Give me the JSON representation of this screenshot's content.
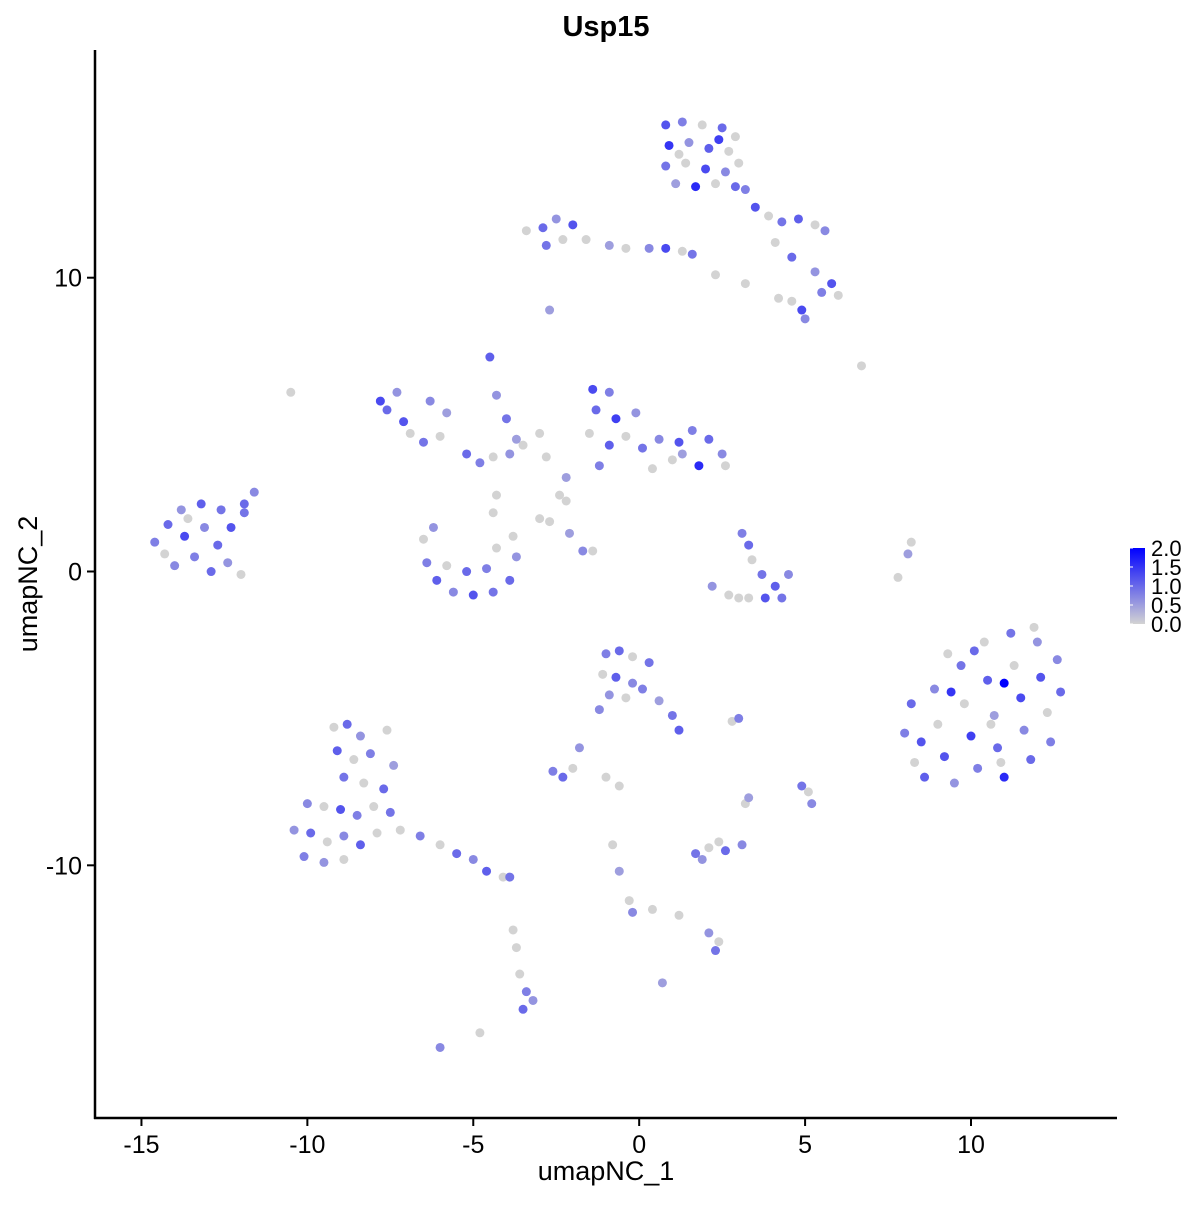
{
  "chart_data": {
    "type": "scatter",
    "title": "Usp15",
    "xlabel": "umapNC_1",
    "ylabel": "umapNC_2",
    "xlim": [
      -16.4,
      14.4
    ],
    "ylim": [
      -18.6,
      17.75
    ],
    "xticks": [
      -15,
      -10,
      -5,
      0,
      5,
      10
    ],
    "xtick_labels": [
      "-15",
      "-10",
      "-5",
      "0",
      "5",
      "10"
    ],
    "yticks": [
      -10,
      0,
      10
    ],
    "ytick_labels": [
      "-10",
      "0",
      "10"
    ],
    "grid": false,
    "legend": {
      "placement": "right",
      "type": "colorbar",
      "range": [
        0,
        2.0
      ],
      "ticks": [
        0.0,
        0.5,
        1.0,
        1.5,
        2.0
      ],
      "tick_labels": [
        "0.0",
        "0.5",
        "1.0",
        "1.5",
        "2.0"
      ],
      "low_color": "#D3D3D3",
      "high_color": "#0000FF"
    },
    "point_fields": [
      "umapNC_1",
      "umapNC_2",
      "expression"
    ],
    "points": [
      [
        0.8,
        15.2,
        1.2
      ],
      [
        1.3,
        15.3,
        0.8
      ],
      [
        1.9,
        15.2,
        0
      ],
      [
        2.5,
        15.1,
        1.0
      ],
      [
        2.9,
        14.8,
        0
      ],
      [
        0.9,
        14.5,
        1.5
      ],
      [
        1.5,
        14.6,
        0.6
      ],
      [
        2.1,
        14.4,
        1.1
      ],
      [
        2.7,
        14.3,
        0
      ],
      [
        0.8,
        13.8,
        0.9
      ],
      [
        1.4,
        13.9,
        0
      ],
      [
        2.0,
        13.7,
        1.3
      ],
      [
        2.6,
        13.6,
        0.7
      ],
      [
        3.0,
        13.9,
        0
      ],
      [
        1.1,
        13.2,
        0.5
      ],
      [
        1.7,
        13.1,
        1.6
      ],
      [
        2.3,
        13.2,
        0
      ],
      [
        2.9,
        13.1,
        1.0
      ],
      [
        1.2,
        14.2,
        0
      ],
      [
        2.4,
        14.7,
        1.4
      ],
      [
        3.2,
        13.0,
        0.8
      ],
      [
        3.5,
        12.4,
        1.2
      ],
      [
        3.9,
        12.1,
        0
      ],
      [
        4.3,
        11.9,
        0.9
      ],
      [
        4.8,
        12.0,
        1.1
      ],
      [
        5.3,
        11.8,
        0
      ],
      [
        5.6,
        11.6,
        0.7
      ],
      [
        4.1,
        11.2,
        0
      ],
      [
        4.6,
        10.7,
        1.0
      ],
      [
        5.3,
        10.2,
        0.6
      ],
      [
        5.8,
        9.8,
        1.2
      ],
      [
        6.0,
        9.4,
        0
      ],
      [
        5.5,
        9.5,
        0.8
      ],
      [
        4.6,
        9.2,
        0
      ],
      [
        4.9,
        8.9,
        1.3
      ],
      [
        5.0,
        8.6,
        0.7
      ],
      [
        4.2,
        9.3,
        0
      ],
      [
        -3.4,
        11.6,
        0
      ],
      [
        -2.9,
        11.7,
        1.0
      ],
      [
        -2.5,
        12.0,
        0.6
      ],
      [
        -2.0,
        11.8,
        1.2
      ],
      [
        -1.6,
        11.3,
        0
      ],
      [
        -2.8,
        11.1,
        0.9
      ],
      [
        -2.3,
        11.3,
        0
      ],
      [
        -0.9,
        11.1,
        0.5
      ],
      [
        -0.4,
        11.0,
        0
      ],
      [
        0.3,
        11.0,
        0.7
      ],
      [
        0.8,
        11.0,
        1.3
      ],
      [
        1.3,
        10.9,
        0
      ],
      [
        1.6,
        10.8,
        0.9
      ],
      [
        2.3,
        10.1,
        0
      ],
      [
        3.2,
        9.8,
        0
      ],
      [
        -2.7,
        8.9,
        0.5
      ],
      [
        6.7,
        7.0,
        0
      ],
      [
        -10.5,
        6.1,
        0
      ],
      [
        -14.6,
        1.0,
        0.8
      ],
      [
        -14.2,
        1.6,
        1.0
      ],
      [
        -13.8,
        2.1,
        0.6
      ],
      [
        -13.2,
        2.3,
        1.1
      ],
      [
        -12.6,
        2.1,
        0.9
      ],
      [
        -12.3,
        1.5,
        1.2
      ],
      [
        -14.3,
        0.6,
        0
      ],
      [
        -13.7,
        1.2,
        1.3
      ],
      [
        -13.1,
        1.5,
        0.7
      ],
      [
        -12.7,
        0.9,
        1.0
      ],
      [
        -13.4,
        0.5,
        0.8
      ],
      [
        -12.4,
        0.3,
        0.6
      ],
      [
        -12.0,
        -0.1,
        0
      ],
      [
        -12.9,
        0.0,
        1.0
      ],
      [
        -14.0,
        0.2,
        0.7
      ],
      [
        -11.9,
        2.0,
        0.9
      ],
      [
        -11.6,
        2.7,
        0.7
      ],
      [
        -11.9,
        2.3,
        1.0
      ],
      [
        -13.6,
        1.8,
        0
      ],
      [
        -7.6,
        5.5,
        1.0
      ],
      [
        -7.3,
        6.1,
        0.6
      ],
      [
        -7.1,
        5.1,
        1.2
      ],
      [
        -6.9,
        4.7,
        0
      ],
      [
        -6.5,
        4.4,
        0.9
      ],
      [
        -6.0,
        4.6,
        0
      ],
      [
        -5.8,
        5.4,
        0.5
      ],
      [
        -5.2,
        4.0,
        1.0
      ],
      [
        -4.8,
        3.7,
        0.8
      ],
      [
        -4.4,
        3.9,
        0
      ],
      [
        -3.9,
        4.0,
        0.6
      ],
      [
        -3.5,
        4.3,
        0
      ],
      [
        -7.8,
        5.8,
        1.3
      ],
      [
        -6.3,
        5.8,
        0.7
      ],
      [
        -4.5,
        7.3,
        1.1
      ],
      [
        -4.3,
        6.0,
        0.6
      ],
      [
        -4.0,
        5.2,
        0.9
      ],
      [
        -3.7,
        4.5,
        0.5
      ],
      [
        -3.0,
        4.7,
        0
      ],
      [
        -2.8,
        3.9,
        0
      ],
      [
        -6.5,
        1.1,
        0
      ],
      [
        -6.4,
        0.3,
        0.8
      ],
      [
        -6.1,
        -0.3,
        1.1
      ],
      [
        -5.6,
        -0.7,
        0.7
      ],
      [
        -5.0,
        -0.8,
        1.2
      ],
      [
        -4.4,
        -0.7,
        0.9
      ],
      [
        -3.9,
        -0.3,
        1.0
      ],
      [
        -3.7,
        0.5,
        0.6
      ],
      [
        -3.8,
        1.2,
        0
      ],
      [
        -5.8,
        0.2,
        0
      ],
      [
        -5.2,
        0.0,
        1.0
      ],
      [
        -4.6,
        0.1,
        0.8
      ],
      [
        -4.3,
        0.8,
        0
      ],
      [
        -6.2,
        1.5,
        0.6
      ],
      [
        -4.4,
        2.0,
        0
      ],
      [
        -4.3,
        2.6,
        0
      ],
      [
        -3.0,
        1.8,
        0
      ],
      [
        -2.7,
        1.7,
        0
      ],
      [
        -2.1,
        1.3,
        0.5
      ],
      [
        -1.7,
        0.7,
        0.7
      ],
      [
        -1.4,
        0.7,
        0
      ],
      [
        -2.2,
        2.4,
        0
      ],
      [
        -1.4,
        6.2,
        1.3
      ],
      [
        -0.9,
        6.1,
        0.8
      ],
      [
        -1.3,
        5.5,
        1.0
      ],
      [
        -0.7,
        5.2,
        1.4
      ],
      [
        -0.1,
        5.4,
        0.6
      ],
      [
        -1.5,
        4.7,
        0
      ],
      [
        -0.9,
        4.3,
        1.1
      ],
      [
        -0.4,
        4.6,
        0
      ],
      [
        0.1,
        4.2,
        0.9
      ],
      [
        0.6,
        4.5,
        0.7
      ],
      [
        1.2,
        4.4,
        1.2
      ],
      [
        1.6,
        4.8,
        0.8
      ],
      [
        2.1,
        4.5,
        1.0
      ],
      [
        2.5,
        4.0,
        0.7
      ],
      [
        2.6,
        3.6,
        0
      ],
      [
        1.8,
        3.6,
        1.6
      ],
      [
        1.0,
        3.8,
        0
      ],
      [
        -1.2,
        3.6,
        0.8
      ],
      [
        -2.2,
        3.2,
        0.5
      ],
      [
        -2.4,
        2.6,
        0
      ],
      [
        1.3,
        4.0,
        0.5
      ],
      [
        0.4,
        3.5,
        0
      ],
      [
        3.1,
        1.3,
        0.8
      ],
      [
        3.3,
        0.9,
        1.0
      ],
      [
        3.4,
        0.4,
        0
      ],
      [
        3.7,
        -0.1,
        0.9
      ],
      [
        4.1,
        -0.5,
        1.1
      ],
      [
        4.5,
        -0.1,
        0.7
      ],
      [
        3.8,
        -0.9,
        1.2
      ],
      [
        3.3,
        -0.9,
        0
      ],
      [
        2.7,
        -0.8,
        0
      ],
      [
        2.2,
        -0.5,
        0.6
      ],
      [
        3.0,
        -0.9,
        0
      ],
      [
        4.3,
        -0.9,
        0.9
      ],
      [
        7.8,
        -0.2,
        0
      ],
      [
        8.1,
        0.6,
        0.5
      ],
      [
        8.2,
        1.0,
        0
      ],
      [
        8.2,
        -4.5,
        1.0
      ],
      [
        8.0,
        -5.5,
        0.8
      ],
      [
        8.3,
        -6.5,
        0
      ],
      [
        8.6,
        -7.0,
        1.1
      ],
      [
        8.9,
        -4.0,
        0.7
      ],
      [
        9.0,
        -5.2,
        0
      ],
      [
        9.2,
        -6.3,
        1.2
      ],
      [
        9.5,
        -7.2,
        0.6
      ],
      [
        9.7,
        -3.2,
        0.9
      ],
      [
        9.8,
        -4.5,
        0
      ],
      [
        10.0,
        -5.6,
        1.4
      ],
      [
        10.2,
        -6.7,
        0.8
      ],
      [
        10.4,
        -2.4,
        0
      ],
      [
        10.5,
        -3.7,
        1.1
      ],
      [
        10.7,
        -4.9,
        0.5
      ],
      [
        10.8,
        -6.0,
        1.0
      ],
      [
        11.0,
        -7.0,
        1.6
      ],
      [
        11.2,
        -2.1,
        0.9
      ],
      [
        11.3,
        -3.2,
        0
      ],
      [
        11.5,
        -4.3,
        1.3
      ],
      [
        11.6,
        -5.4,
        0.7
      ],
      [
        11.8,
        -6.4,
        1.0
      ],
      [
        12.0,
        -2.4,
        0.6
      ],
      [
        12.1,
        -3.6,
        1.2
      ],
      [
        12.3,
        -4.8,
        0
      ],
      [
        12.4,
        -5.8,
        0.8
      ],
      [
        12.6,
        -3.0,
        0.7
      ],
      [
        12.7,
        -4.1,
        1.0
      ],
      [
        9.3,
        -2.8,
        0
      ],
      [
        10.1,
        -2.7,
        1.0
      ],
      [
        11.9,
        -1.9,
        0
      ],
      [
        10.6,
        -5.2,
        0
      ],
      [
        9.4,
        -4.1,
        1.5
      ],
      [
        11.0,
        -3.8,
        2.0
      ],
      [
        10.9,
        -6.5,
        0
      ],
      [
        8.5,
        -5.8,
        1.2
      ],
      [
        -9.2,
        -5.3,
        0
      ],
      [
        -8.8,
        -5.2,
        1.0
      ],
      [
        -8.4,
        -5.6,
        0.6
      ],
      [
        -9.1,
        -6.1,
        1.1
      ],
      [
        -8.6,
        -6.4,
        0
      ],
      [
        -8.1,
        -6.2,
        0.8
      ],
      [
        -7.6,
        -5.4,
        0
      ],
      [
        -7.4,
        -6.6,
        0.5
      ],
      [
        -8.9,
        -7.0,
        0.9
      ],
      [
        -8.3,
        -7.2,
        0
      ],
      [
        -7.7,
        -7.4,
        1.0
      ],
      [
        -10.0,
        -7.9,
        0.7
      ],
      [
        -9.5,
        -8.0,
        0
      ],
      [
        -9.0,
        -8.1,
        1.2
      ],
      [
        -8.5,
        -8.3,
        0.8
      ],
      [
        -8.0,
        -8.0,
        0
      ],
      [
        -7.5,
        -8.2,
        0.9
      ],
      [
        -10.4,
        -8.8,
        0.6
      ],
      [
        -9.9,
        -8.9,
        1.0
      ],
      [
        -9.4,
        -9.2,
        0
      ],
      [
        -8.9,
        -9.0,
        0.7
      ],
      [
        -8.4,
        -9.3,
        1.1
      ],
      [
        -7.9,
        -8.9,
        0
      ],
      [
        -10.1,
        -9.7,
        0.8
      ],
      [
        -9.5,
        -9.9,
        0.6
      ],
      [
        -8.9,
        -9.8,
        0
      ],
      [
        -7.2,
        -8.8,
        0
      ],
      [
        -6.6,
        -9.0,
        0.8
      ],
      [
        -6.0,
        -9.3,
        0
      ],
      [
        -5.5,
        -9.6,
        1.0
      ],
      [
        -5.0,
        -9.8,
        0.7
      ],
      [
        -4.6,
        -10.2,
        1.1
      ],
      [
        -4.1,
        -10.4,
        0
      ],
      [
        -3.9,
        -10.4,
        0.9
      ],
      [
        -1.0,
        -2.8,
        0.8
      ],
      [
        -0.6,
        -2.7,
        1.0
      ],
      [
        -0.2,
        -2.9,
        0
      ],
      [
        0.3,
        -3.1,
        0.9
      ],
      [
        -1.1,
        -3.5,
        0
      ],
      [
        -0.7,
        -3.6,
        1.1
      ],
      [
        -0.2,
        -3.8,
        0.7
      ],
      [
        -0.9,
        -4.2,
        0.6
      ],
      [
        -0.4,
        -4.3,
        0
      ],
      [
        0.1,
        -4.0,
        0.8
      ],
      [
        0.6,
        -4.4,
        0.5
      ],
      [
        1.0,
        -4.9,
        0.9
      ],
      [
        1.2,
        -5.4,
        1.1
      ],
      [
        -1.2,
        -4.7,
        0.7
      ],
      [
        2.8,
        -5.1,
        0
      ],
      [
        3.0,
        -5.0,
        0.8
      ],
      [
        -2.6,
        -6.8,
        0.8
      ],
      [
        -2.3,
        -7.0,
        1.0
      ],
      [
        -2.0,
        -6.7,
        0
      ],
      [
        -1.8,
        -6.0,
        0.6
      ],
      [
        -1.0,
        -7.0,
        0
      ],
      [
        -0.6,
        -7.3,
        0
      ],
      [
        3.3,
        -7.7,
        0.5
      ],
      [
        3.2,
        -7.9,
        0
      ],
      [
        4.9,
        -7.3,
        0.9
      ],
      [
        5.1,
        -7.5,
        0
      ],
      [
        5.2,
        -7.9,
        0.7
      ],
      [
        1.7,
        -9.6,
        0.9
      ],
      [
        2.1,
        -9.4,
        0
      ],
      [
        2.6,
        -9.5,
        1.0
      ],
      [
        3.1,
        -9.3,
        0.7
      ],
      [
        1.9,
        -9.8,
        0.6
      ],
      [
        2.4,
        -9.2,
        0
      ],
      [
        -0.8,
        -9.3,
        0
      ],
      [
        -0.6,
        -10.2,
        0.5
      ],
      [
        -0.3,
        -11.2,
        0
      ],
      [
        -0.2,
        -11.6,
        0.7
      ],
      [
        0.4,
        -11.5,
        0
      ],
      [
        1.2,
        -11.7,
        0
      ],
      [
        2.1,
        -12.3,
        0.6
      ],
      [
        2.4,
        -12.6,
        0
      ],
      [
        2.3,
        -12.9,
        0.9
      ],
      [
        -3.8,
        -12.2,
        0
      ],
      [
        -3.7,
        -12.8,
        0
      ],
      [
        -3.6,
        -13.7,
        0
      ],
      [
        -3.4,
        -14.3,
        0.8
      ],
      [
        -3.5,
        -14.9,
        1.0
      ],
      [
        -3.2,
        -14.6,
        0.6
      ],
      [
        -6.0,
        -16.2,
        0.7
      ],
      [
        -4.8,
        -15.7,
        0
      ],
      [
        0.7,
        -14.0,
        0.5
      ]
    ]
  }
}
